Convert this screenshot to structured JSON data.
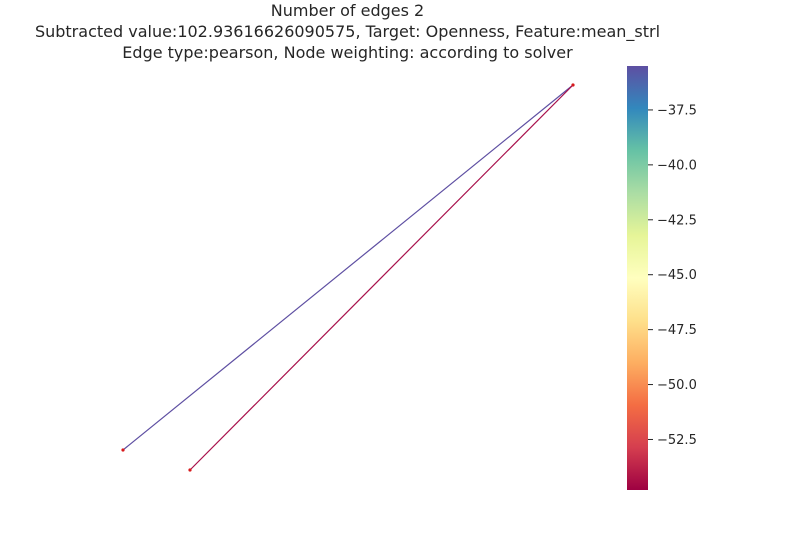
{
  "title": {
    "line1": "Number of edges 2",
    "line2": "Subtracted value:102.93616626090575, Target: Openness, Feature:mean_strl",
    "line3": "Edge type:pearson, Node weighting: according to solver"
  },
  "colors": {
    "edge_top": "#5e4fa2",
    "edge_bottom": "#a8104b",
    "node": "#d7191c"
  },
  "colorbar": {
    "colormap": "Spectral",
    "range": [
      -54.8,
      -35.5
    ],
    "ticks": [
      "−37.5",
      "−40.0",
      "−42.5",
      "−45.0",
      "−47.5",
      "−50.0",
      "−52.5"
    ],
    "tick_values": [
      -37.5,
      -40.0,
      -42.5,
      -45.0,
      -47.5,
      -50.0,
      -52.5
    ]
  }
}
